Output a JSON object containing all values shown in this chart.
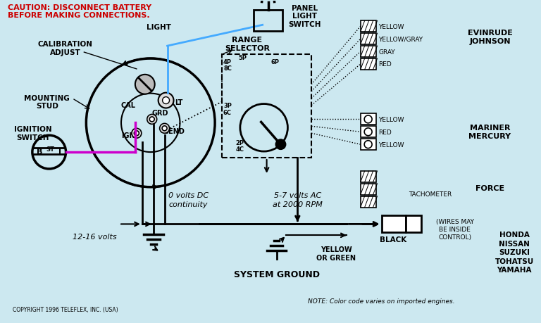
{
  "bg_color": "#cce8f0",
  "caution_line1": "CAUTION: DISCONNECT BATTERY",
  "caution_line2": "BEFORE MAKING CONNECTIONS.",
  "caution_color": "#cc0000",
  "calibration_adjust": "CALIBRATION\nADJUST",
  "mounting_stud": "MOUNTING\nSTUD",
  "light_label": "LIGHT",
  "lt_label": "LT",
  "cal_label": "CAL",
  "grd_label": "GRD",
  "ign_label": "IGN",
  "send_label": "SEND",
  "range_selector": "RANGE\nSELECTOR",
  "panel_light_switch": "PANEL\nLIGHT\nSWITCH",
  "ignition_switch": "IGNITION\nSWITCH",
  "zero_volts": "0 volts DC\ncontinuity",
  "volts_ac": "5-7 volts AC\nat 2000 RPM",
  "twelve_volts": "12-16 volts",
  "system_ground": "SYSTEM GROUND",
  "yellow_or_green": "YELLOW\nOR GREEN",
  "black_label": "BLACK",
  "wires_may": "(WIRES MAY\nBE INSIDE\nCONTROL)",
  "evinrude_johnson": "EVINRUDE\nJOHNSON",
  "mariner_mercury": "MARINER\nMERCURY",
  "force_label": "FORCE",
  "tachometer_label": "TACHOMETER",
  "honda_etc": "HONDA\nNISSAN\nSUZUKI\nTOHATSU\nYAMAHA",
  "note_text": "NOTE: Color code varies on imported engines.",
  "copyright_text": "COPYRIGHT 1996 TELEFLEX, INC. (USA)",
  "evinrude_wires": [
    "YELLOW",
    "YELLOW/GRAY",
    "GRAY",
    "RED"
  ],
  "mariner_wires": [
    "YELLOW",
    "RED",
    "YELLOW"
  ],
  "magenta_wire": "#cc00cc",
  "blue_wire": "#44aaff",
  "black_wire": "#000000"
}
